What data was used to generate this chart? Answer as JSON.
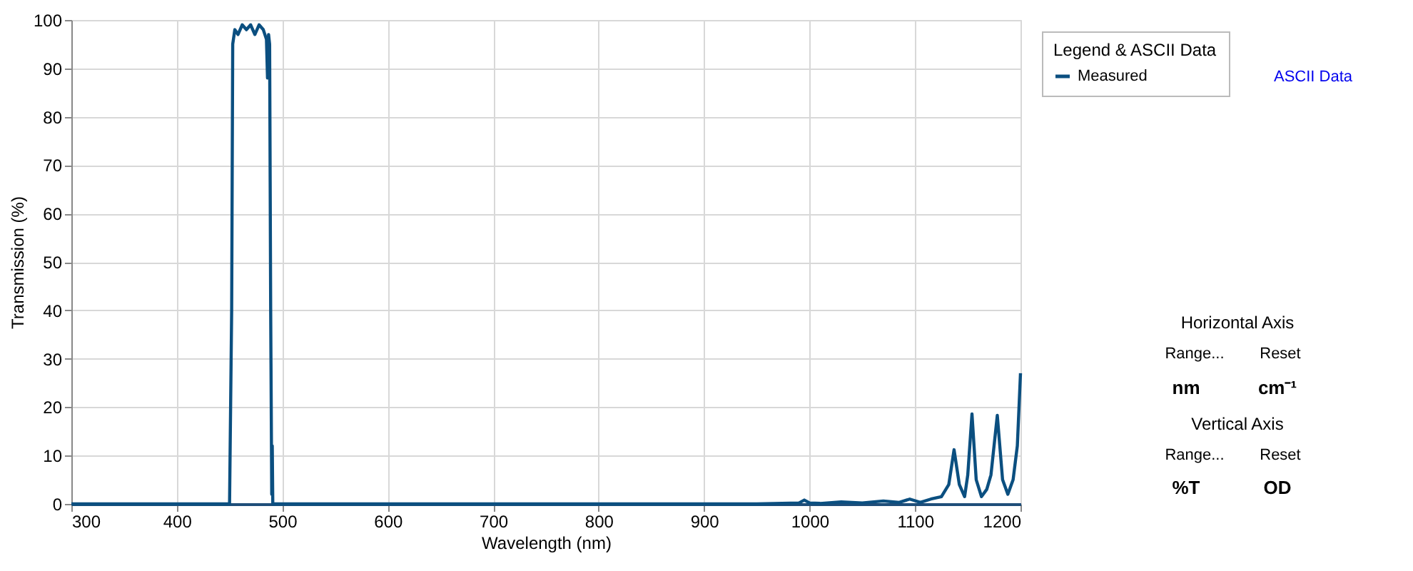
{
  "chart_data": {
    "type": "line",
    "xlabel": "Wavelength (nm)",
    "ylabel": "Transmission (%)",
    "legend_title": "Legend & ASCII Data",
    "legend": "right",
    "grid": true,
    "marker": "none",
    "line_style": "solid",
    "xlim": [
      300,
      1200
    ],
    "xticks": [
      300,
      400,
      500,
      600,
      700,
      800,
      900,
      1000,
      1100,
      1200
    ],
    "ylim": [
      0,
      100
    ],
    "yticks": [
      0,
      10,
      20,
      30,
      40,
      50,
      60,
      70,
      80,
      90,
      100
    ],
    "x": [
      300,
      450,
      452,
      453,
      455,
      458,
      462,
      466,
      470,
      474,
      478,
      482,
      485,
      486,
      487,
      488,
      489,
      490,
      490.5,
      491,
      492,
      500,
      950,
      990,
      995,
      1000,
      1010,
      1030,
      1050,
      1070,
      1085,
      1095,
      1105,
      1115,
      1125,
      1132,
      1137,
      1142,
      1147,
      1150,
      1154,
      1158,
      1163,
      1168,
      1172,
      1178,
      1183,
      1188,
      1193,
      1197,
      1200
    ],
    "series": [
      {
        "name": "Measured",
        "color": "#0b4f80",
        "values": [
          0,
          0,
          40,
          95,
          98,
          97,
          99,
          98,
          99,
          97,
          99,
          98,
          96,
          88,
          97,
          95,
          40,
          2,
          12,
          0,
          0,
          0,
          0,
          0.2,
          0.8,
          0.2,
          0.1,
          0.4,
          0.2,
          0.6,
          0.3,
          1.0,
          0.3,
          1.0,
          1.5,
          4,
          11.2,
          4,
          1.5,
          6,
          18.6,
          5,
          1.5,
          3,
          6,
          18.3,
          5,
          2,
          5,
          12,
          27
        ]
      }
    ],
    "annotations": [
      "ASCII Data",
      "Horizontal Axis",
      "Range...",
      "Reset",
      "nm",
      "cm⁻¹",
      "Vertical Axis",
      "Range...",
      "Reset",
      "%T",
      "OD"
    ]
  }
}
